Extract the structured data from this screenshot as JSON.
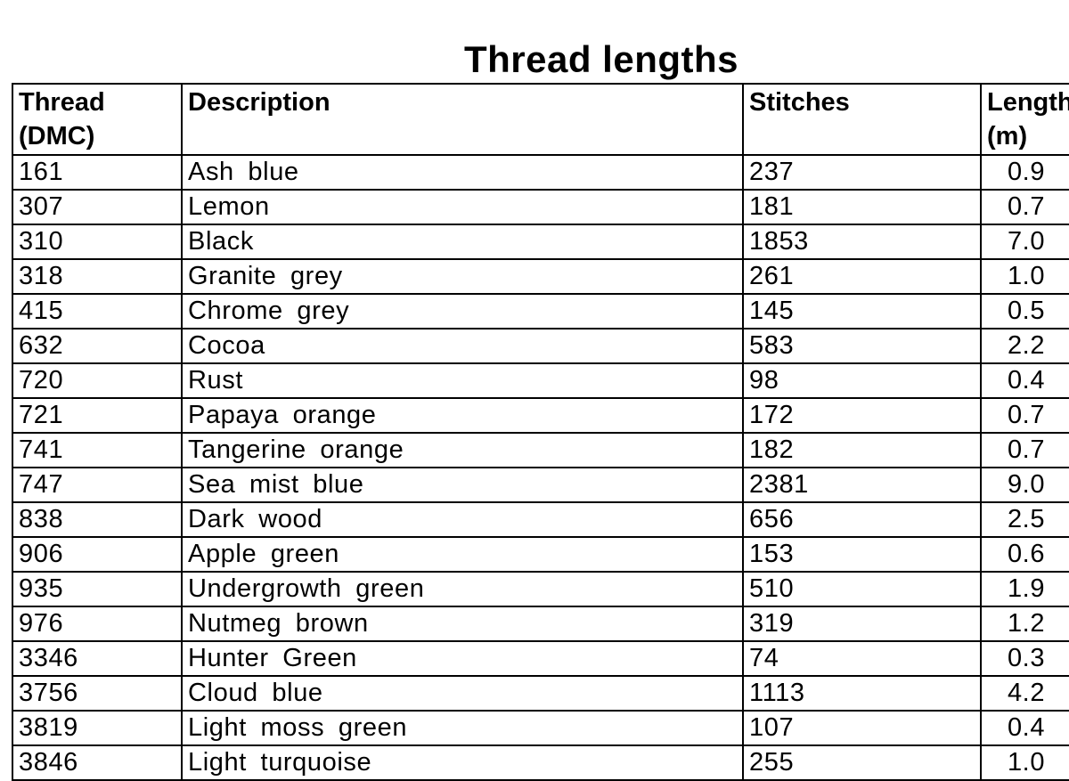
{
  "title": "Thread lengths",
  "table": {
    "columns": [
      "Thread (DMC)",
      "Description",
      "Stitches",
      "Length (m)"
    ],
    "rows": [
      {
        "thread": "161",
        "description": "Ash blue",
        "stitches": "237",
        "length": "0.9"
      },
      {
        "thread": "307",
        "description": "Lemon",
        "stitches": "181",
        "length": "0.7"
      },
      {
        "thread": "310",
        "description": "Black",
        "stitches": "1853",
        "length": "7.0"
      },
      {
        "thread": "318",
        "description": "Granite grey",
        "stitches": "261",
        "length": "1.0"
      },
      {
        "thread": "415",
        "description": "Chrome grey",
        "stitches": "145",
        "length": "0.5"
      },
      {
        "thread": "632",
        "description": "Cocoa",
        "stitches": "583",
        "length": "2.2"
      },
      {
        "thread": "720",
        "description": "Rust",
        "stitches": "98",
        "length": "0.4"
      },
      {
        "thread": "721",
        "description": "Papaya orange",
        "stitches": "172",
        "length": "0.7"
      },
      {
        "thread": "741",
        "description": "Tangerine orange",
        "stitches": "182",
        "length": "0.7"
      },
      {
        "thread": "747",
        "description": "Sea mist blue",
        "stitches": "2381",
        "length": "9.0"
      },
      {
        "thread": "838",
        "description": "Dark wood",
        "stitches": "656",
        "length": "2.5"
      },
      {
        "thread": "906",
        "description": "Apple green",
        "stitches": "153",
        "length": "0.6"
      },
      {
        "thread": "935",
        "description": "Undergrowth green",
        "stitches": "510",
        "length": "1.9"
      },
      {
        "thread": "976",
        "description": "Nutmeg brown",
        "stitches": "319",
        "length": "1.2"
      },
      {
        "thread": "3346",
        "description": "Hunter Green",
        "stitches": "74",
        "length": "0.3"
      },
      {
        "thread": "3756",
        "description": "Cloud blue",
        "stitches": "1113",
        "length": "4.2"
      },
      {
        "thread": "3819",
        "description": "Light moss green",
        "stitches": "107",
        "length": "0.4"
      },
      {
        "thread": "3846",
        "description": "Light turquoise",
        "stitches": "255",
        "length": "1.0"
      }
    ]
  },
  "colors": {
    "text": "#000000",
    "border": "#000000",
    "background": "#ffffff"
  }
}
